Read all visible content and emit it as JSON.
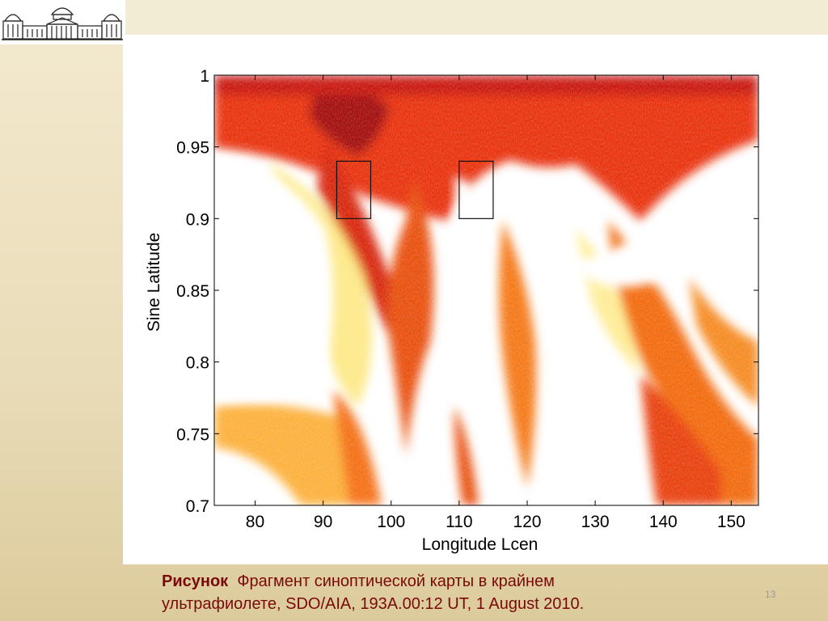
{
  "slide": {
    "caption_bold": "Рисунок",
    "caption_line1": "Фрагмент синоптической карты в крайнем",
    "caption_line2": "ультрафиолете,  SDO/AIA, 193A.00:12 UT, 1 August 2010.",
    "slide_number": "13",
    "logo_icon": "observatory-building-icon"
  },
  "chart_data": {
    "type": "heatmap",
    "title": "",
    "xlabel": "Longitude  Lcen",
    "ylabel": "Sine Latitude",
    "xlim": [
      74,
      154
    ],
    "ylim": [
      0.7,
      1.0
    ],
    "xticks": [
      80,
      90,
      100,
      110,
      120,
      130,
      140,
      150
    ],
    "yticks": [
      0.7,
      0.75,
      0.8,
      0.85,
      0.9,
      0.95,
      1
    ],
    "colormap": [
      "#8b0a0a",
      "#d42a08",
      "#f26a10",
      "#fbb83a",
      "#fff3a0",
      "#ffffff"
    ],
    "grid": false,
    "annotations": [
      {
        "type": "box",
        "x": [
          92,
          97
        ],
        "y": [
          0.9,
          0.94
        ]
      },
      {
        "type": "box",
        "x": [
          110,
          115
        ],
        "y": [
          0.9,
          0.94
        ]
      }
    ]
  }
}
